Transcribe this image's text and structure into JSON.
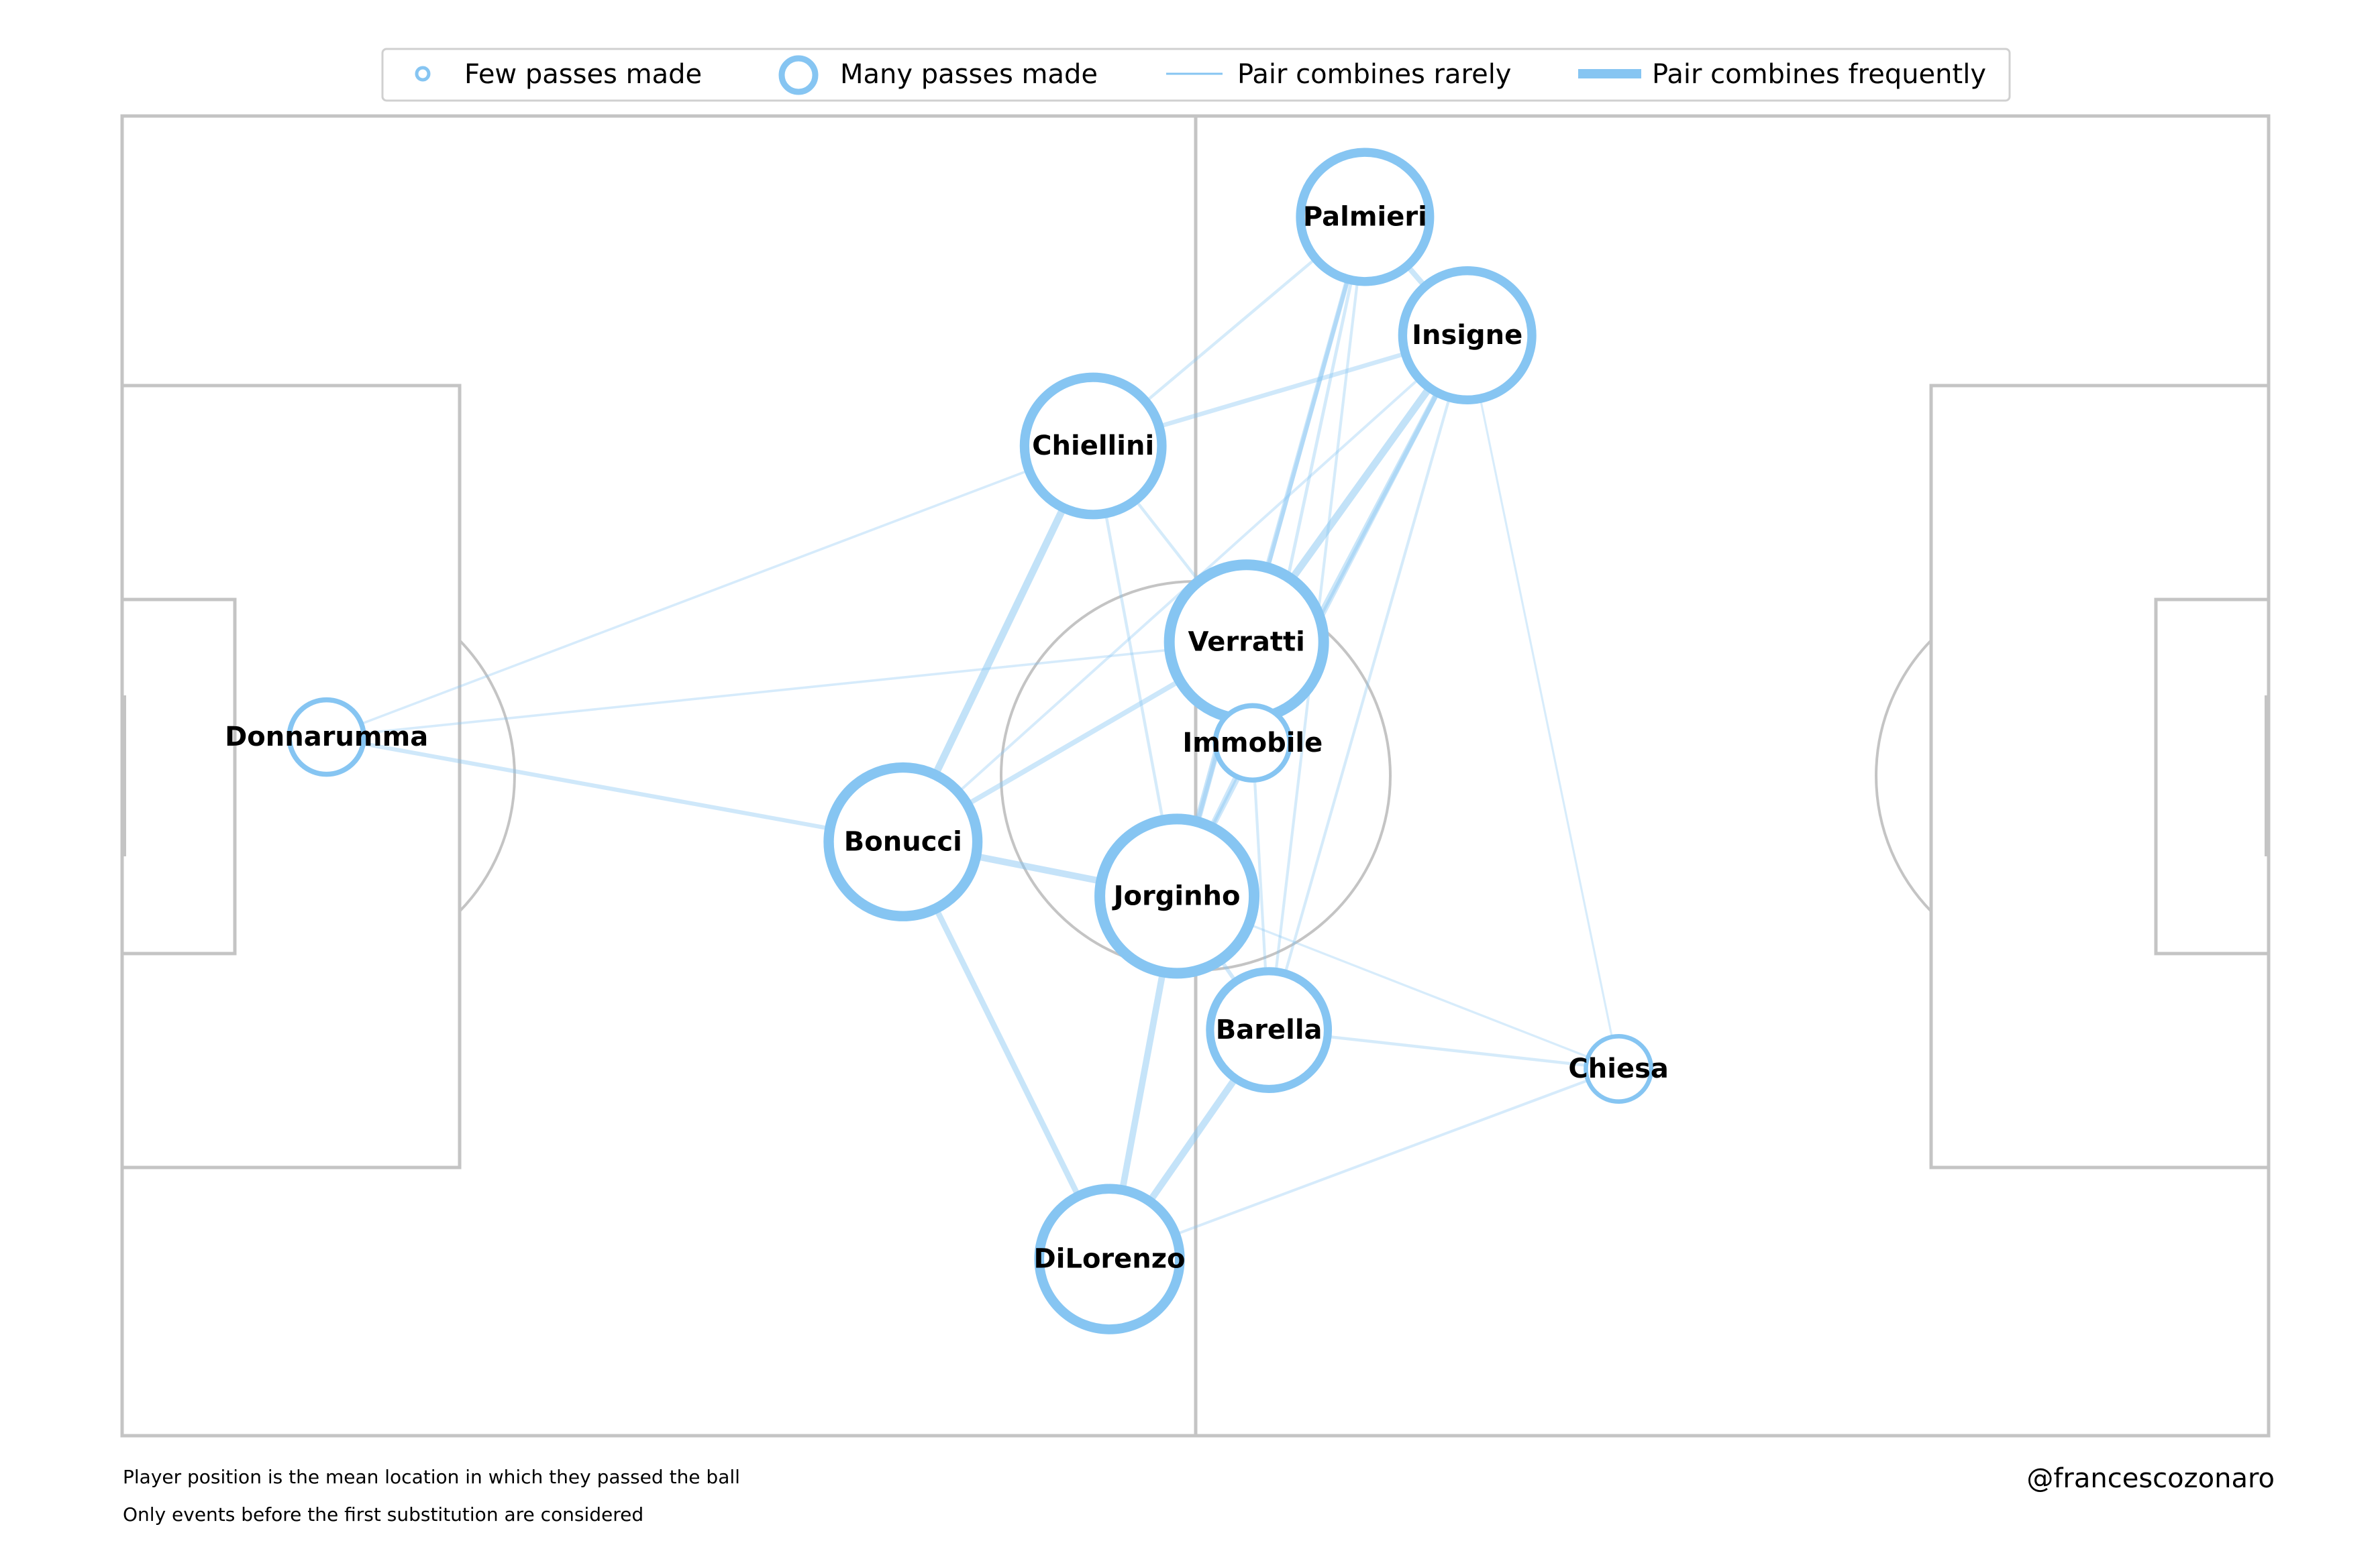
{
  "legend": {
    "few_passes": "Few passes made",
    "many_passes": "Many passes made",
    "rare_pair": "Pair combines rarely",
    "frequent_pair": "Pair combines frequently"
  },
  "footer": {
    "note1": "Player position is the mean location in which they passed the ball",
    "note2": "Only events before the first substitution are considered",
    "credit": "@francescozonaro"
  },
  "colors": {
    "accent": "#86c5f2",
    "pitch_lines": "#c4c4c4"
  },
  "pitch": {
    "length": 105,
    "width": 68
  },
  "players": [
    {
      "name": "Palmieri",
      "x": 60.8,
      "y": 62.8,
      "size": 0.78
    },
    {
      "name": "Insigne",
      "x": 65.8,
      "y": 56.7,
      "size": 0.78
    },
    {
      "name": "Chiellini",
      "x": 47.5,
      "y": 51.0,
      "size": 0.85
    },
    {
      "name": "Verratti",
      "x": 55.0,
      "y": 40.9,
      "size": 1.0
    },
    {
      "name": "Immobile",
      "x": 55.3,
      "y": 35.7,
      "size": 0.3
    },
    {
      "name": "Donnarumma",
      "x": 10.0,
      "y": 36.0,
      "size": 0.3
    },
    {
      "name": "Bonucci",
      "x": 38.2,
      "y": 30.6,
      "size": 0.95
    },
    {
      "name": "Jorginho",
      "x": 51.6,
      "y": 27.8,
      "size": 1.0
    },
    {
      "name": "Barella",
      "x": 56.1,
      "y": 20.9,
      "size": 0.68
    },
    {
      "name": "Chiesa",
      "x": 73.2,
      "y": 18.9,
      "size": 0.22
    },
    {
      "name": "DiLorenzo",
      "x": 48.3,
      "y": 9.1,
      "size": 0.88
    }
  ],
  "links": [
    {
      "a": "Donnarumma",
      "b": "Bonucci",
      "w": 0.38
    },
    {
      "a": "Donnarumma",
      "b": "Chiellini",
      "w": 0.15
    },
    {
      "a": "Donnarumma",
      "b": "Verratti",
      "w": 0.15
    },
    {
      "a": "Bonucci",
      "b": "Chiellini",
      "w": 0.8
    },
    {
      "a": "Bonucci",
      "b": "Jorginho",
      "w": 0.72
    },
    {
      "a": "Bonucci",
      "b": "DiLorenzo",
      "w": 0.6
    },
    {
      "a": "Bonucci",
      "b": "Verratti",
      "w": 0.5
    },
    {
      "a": "Bonucci",
      "b": "Insigne",
      "w": 0.18
    },
    {
      "a": "Chiellini",
      "b": "Palmieri",
      "w": 0.22
    },
    {
      "a": "Chiellini",
      "b": "Insigne",
      "w": 0.42
    },
    {
      "a": "Chiellini",
      "b": "Verratti",
      "w": 0.22
    },
    {
      "a": "Chiellini",
      "b": "Jorginho",
      "w": 0.22
    },
    {
      "a": "Verratti",
      "b": "Insigne",
      "w": 0.8
    },
    {
      "a": "Verratti",
      "b": "Palmieri",
      "w": 0.5
    },
    {
      "a": "Verratti",
      "b": "Jorginho",
      "w": 0.65
    },
    {
      "a": "Verratti",
      "b": "Immobile",
      "w": 0.3
    },
    {
      "a": "Palmieri",
      "b": "Insigne",
      "w": 0.55
    },
    {
      "a": "Palmieri",
      "b": "Jorginho",
      "w": 0.35
    },
    {
      "a": "Palmieri",
      "b": "Immobile",
      "w": 0.25
    },
    {
      "a": "Palmieri",
      "b": "Barella",
      "w": 0.2
    },
    {
      "a": "Insigne",
      "b": "Jorginho",
      "w": 0.45
    },
    {
      "a": "Insigne",
      "b": "Immobile",
      "w": 0.55
    },
    {
      "a": "Insigne",
      "b": "Barella",
      "w": 0.2
    },
    {
      "a": "Insigne",
      "b": "Chiesa",
      "w": 0.1
    },
    {
      "a": "Jorginho",
      "b": "Immobile",
      "w": 0.45
    },
    {
      "a": "Jorginho",
      "b": "Barella",
      "w": 0.35
    },
    {
      "a": "Jorginho",
      "b": "DiLorenzo",
      "w": 0.7
    },
    {
      "a": "Jorginho",
      "b": "Chiesa",
      "w": 0.12
    },
    {
      "a": "Barella",
      "b": "DiLorenzo",
      "w": 0.75
    },
    {
      "a": "Barella",
      "b": "Chiesa",
      "w": 0.22
    },
    {
      "a": "Barella",
      "b": "Immobile",
      "w": 0.2
    },
    {
      "a": "DiLorenzo",
      "b": "Chiesa",
      "w": 0.18
    }
  ]
}
